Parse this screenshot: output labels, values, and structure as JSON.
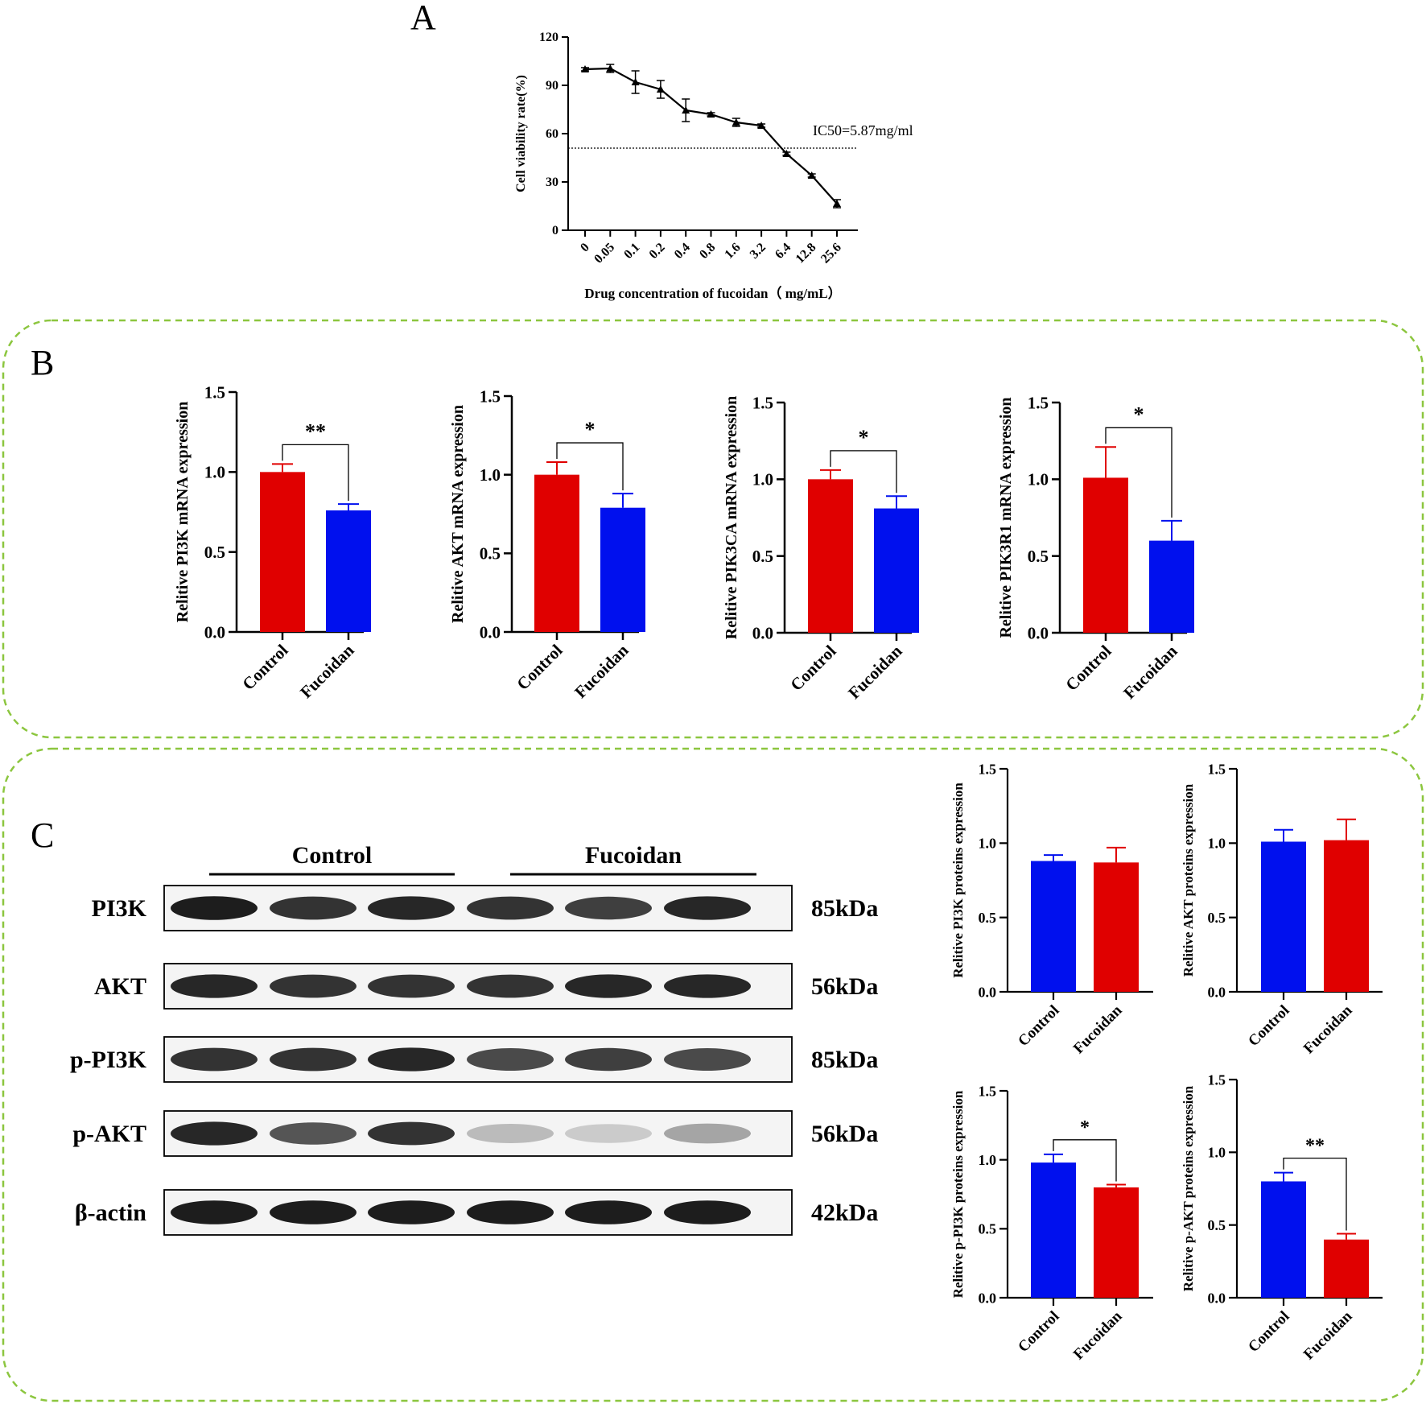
{
  "panel_labels": {
    "a": "A",
    "b": "B",
    "c": "C"
  },
  "colors": {
    "red": "#e00000",
    "blue": "#0010ee",
    "border": "#8cc63f",
    "ink": "#000000"
  },
  "chart_data": [
    {
      "id": "A",
      "type": "line",
      "x": [
        "0",
        "0.05",
        "0.1",
        "0.2",
        "0.4",
        "0.8",
        "1.6",
        "3.2",
        "6.4",
        "12.8",
        "25.6"
      ],
      "series": [
        {
          "values": [
            100,
            100.5,
            92,
            87.5,
            74.5,
            72,
            67,
            65,
            47.5,
            34,
            16.5
          ],
          "errors": [
            1,
            2.5,
            7,
            5.5,
            7,
            1,
            2.5,
            1,
            1,
            1,
            2.5
          ]
        }
      ],
      "ylabel": "Cell viability rate(%)",
      "xlabel": "Drug concentration of fucoidan（ mg/mL）",
      "ylim": [
        0,
        120
      ],
      "yticks": [
        "0",
        "30",
        "60",
        "90",
        "120"
      ],
      "reference_line": {
        "y": 51,
        "label": "IC50=5.87mg/ml"
      }
    },
    {
      "id": "B1",
      "type": "bar",
      "categories": [
        "Control",
        "Fucoidan"
      ],
      "values": [
        1.0,
        0.76
      ],
      "errors": [
        0.05,
        0.04
      ],
      "bar_colors": [
        "red",
        "blue"
      ],
      "ylabel": "Relitive PI3K mRNA expression",
      "ylim": [
        0,
        1.5
      ],
      "yticks": [
        "0.0",
        "0.5",
        "1.0",
        "1.5"
      ],
      "significance": "**"
    },
    {
      "id": "B2",
      "type": "bar",
      "categories": [
        "Control",
        "Fucoidan"
      ],
      "values": [
        1.0,
        0.79
      ],
      "errors": [
        0.08,
        0.09
      ],
      "bar_colors": [
        "red",
        "blue"
      ],
      "ylabel": "Relitive AKT mRNA expression",
      "ylim": [
        0,
        1.5
      ],
      "yticks": [
        "0.0",
        "0.5",
        "1.0",
        "1.5"
      ],
      "significance": "*"
    },
    {
      "id": "B3",
      "type": "bar",
      "categories": [
        "Control",
        "Fucoidan"
      ],
      "values": [
        1.0,
        0.81
      ],
      "errors": [
        0.06,
        0.08
      ],
      "bar_colors": [
        "red",
        "blue"
      ],
      "ylabel": "Relitive PIK3CA mRNA expression",
      "ylim": [
        0,
        1.5
      ],
      "yticks": [
        "0.0",
        "0.5",
        "1.0",
        "1.5"
      ],
      "significance": "*"
    },
    {
      "id": "B4",
      "type": "bar",
      "categories": [
        "Control",
        "Fucoidan"
      ],
      "values": [
        1.01,
        0.6
      ],
      "errors": [
        0.2,
        0.13
      ],
      "bar_colors": [
        "red",
        "blue"
      ],
      "ylabel": "Relitive PIK3R1 mRNA expression",
      "ylim": [
        0,
        1.5
      ],
      "yticks": [
        "0.0",
        "0.5",
        "1.0",
        "1.5"
      ],
      "significance": "*"
    },
    {
      "id": "C1",
      "type": "bar",
      "categories": [
        "Control",
        "Fucoidan"
      ],
      "values": [
        0.88,
        0.87
      ],
      "errors": [
        0.04,
        0.1
      ],
      "bar_colors": [
        "blue",
        "red"
      ],
      "ylabel": "Relitive PI3K proteins expression",
      "ylim": [
        0,
        1.5
      ],
      "yticks": [
        "0.0",
        "0.5",
        "1.0",
        "1.5"
      ],
      "significance": ""
    },
    {
      "id": "C2",
      "type": "bar",
      "categories": [
        "Control",
        "Fucoidan"
      ],
      "values": [
        1.01,
        1.02
      ],
      "errors": [
        0.08,
        0.14
      ],
      "bar_colors": [
        "blue",
        "red"
      ],
      "ylabel": "Relitive AKT proteins expression",
      "ylim": [
        0,
        1.5
      ],
      "yticks": [
        "0.0",
        "0.5",
        "1.0",
        "1.5"
      ],
      "significance": ""
    },
    {
      "id": "C3",
      "type": "bar",
      "categories": [
        "Control",
        "Fucoidan"
      ],
      "values": [
        0.98,
        0.8
      ],
      "errors": [
        0.06,
        0.02
      ],
      "bar_colors": [
        "blue",
        "red"
      ],
      "ylabel": "Relitive p-PI3K proteins expression",
      "ylim": [
        0,
        1.5
      ],
      "yticks": [
        "0.0",
        "0.5",
        "1.0",
        "1.5"
      ],
      "significance": "*"
    },
    {
      "id": "C4",
      "type": "bar",
      "categories": [
        "Control",
        "Fucoidan"
      ],
      "values": [
        0.8,
        0.4
      ],
      "errors": [
        0.06,
        0.04
      ],
      "bar_colors": [
        "blue",
        "red"
      ],
      "ylabel": "Relitive p-AKT proteins expression",
      "ylim": [
        0,
        1.5
      ],
      "yticks": [
        "0.0",
        "0.5",
        "1.0",
        "1.5"
      ],
      "significance": "**"
    }
  ],
  "western_blot": {
    "groups": [
      "Control",
      "Fucoidan"
    ],
    "rows": [
      {
        "protein": "PI3K",
        "size": "85kDa",
        "intensity": [
          0.95,
          0.85,
          0.9,
          0.85,
          0.8,
          0.9
        ]
      },
      {
        "protein": "AKT",
        "size": "56kDa",
        "intensity": [
          0.9,
          0.85,
          0.85,
          0.85,
          0.9,
          0.9
        ]
      },
      {
        "protein": "p-PI3K",
        "size": "85kDa",
        "intensity": [
          0.85,
          0.85,
          0.9,
          0.75,
          0.8,
          0.75
        ]
      },
      {
        "protein": "p-AKT",
        "size": "56kDa",
        "intensity": [
          0.9,
          0.7,
          0.85,
          0.25,
          0.18,
          0.35
        ]
      },
      {
        "protein": "β-actin",
        "size": "42kDa",
        "intensity": [
          0.95,
          0.95,
          0.95,
          0.95,
          0.95,
          0.95
        ]
      }
    ]
  }
}
